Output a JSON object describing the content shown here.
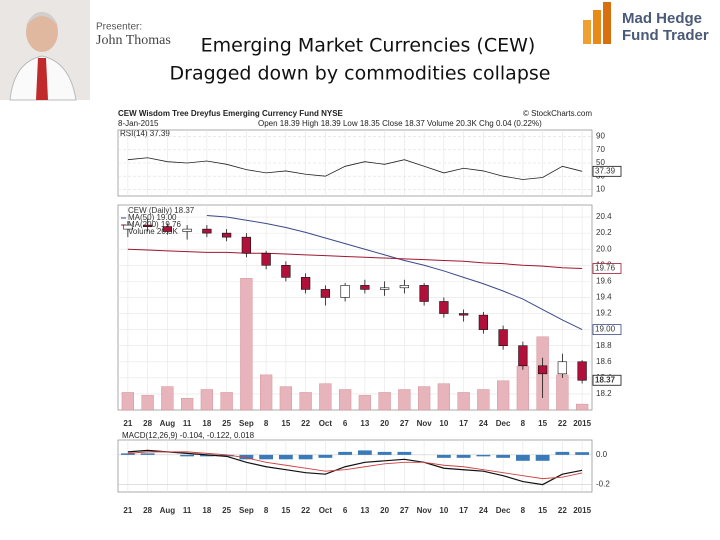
{
  "presenter": {
    "label": "Presenter:",
    "name": "John Thomas"
  },
  "logo": {
    "line1": "Mad Hedge",
    "line2": "Fund Trader"
  },
  "title": {
    "line1": "Emerging Market Currencies (CEW)",
    "line2": "Dragged down by commodities collapse"
  },
  "chart_data": {
    "type": "candlestick",
    "header": "CEW Wisdom Tree Dreyfus Emerging Currency Fund NYSE",
    "source": "© StockCharts.com",
    "date": "8-Jan-2015",
    "quote": "Open 18.39 High 18.39 Low 18.35 Close 18.37 Volume 20.3K Chg 0.04 (0.22%)",
    "rsi_label": "RSI(14) 37.39",
    "macd_label": "MACD(12,26,9) -0.104, -0.122, 0.018",
    "name": "CEW (Daily) 18.37",
    "last_label": "18.37",
    "up_color": "#ffffff",
    "down_color": "#b0103a",
    "categories": [
      "21",
      "28",
      "Aug",
      "11",
      "18",
      "25",
      "Sep",
      "8",
      "15",
      "22",
      "Oct",
      "6",
      "13",
      "20",
      "27",
      "Nov",
      "10",
      "17",
      "24",
      "Dec",
      "8",
      "15",
      "22",
      "2015"
    ],
    "open": [
      20.25,
      20.3,
      20.28,
      20.22,
      20.25,
      20.2,
      20.15,
      19.95,
      19.8,
      19.65,
      19.5,
      19.4,
      19.55,
      19.5,
      19.52,
      19.55,
      19.35,
      19.2,
      19.18,
      19.0,
      18.8,
      18.55,
      18.45,
      18.6
    ],
    "high": [
      20.35,
      20.38,
      20.32,
      20.3,
      20.3,
      20.25,
      20.2,
      19.98,
      19.85,
      19.7,
      19.55,
      19.58,
      19.62,
      19.6,
      19.62,
      19.58,
      19.4,
      19.25,
      19.22,
      19.05,
      18.85,
      18.65,
      18.7,
      18.62
    ],
    "low": [
      20.15,
      20.22,
      20.18,
      20.12,
      20.15,
      20.1,
      19.9,
      19.75,
      19.6,
      19.45,
      19.3,
      19.35,
      19.45,
      19.42,
      19.45,
      19.3,
      19.15,
      19.1,
      18.95,
      18.75,
      18.5,
      18.15,
      18.4,
      18.33
    ],
    "close": [
      20.3,
      20.28,
      20.22,
      20.25,
      20.2,
      20.15,
      19.95,
      19.8,
      19.65,
      19.5,
      19.4,
      19.55,
      19.5,
      19.52,
      19.55,
      19.35,
      19.2,
      19.18,
      19.0,
      18.8,
      18.55,
      18.45,
      18.6,
      18.37
    ],
    "series": [
      {
        "name": "MA(50) 19.00",
        "color": "#3a4a8a",
        "last_label": "19.00",
        "values": [
          null,
          null,
          null,
          null,
          20.42,
          20.4,
          20.36,
          20.32,
          20.27,
          20.21,
          20.14,
          20.07,
          20.0,
          19.93,
          19.86,
          19.8,
          19.73,
          19.65,
          19.57,
          19.48,
          19.38,
          19.25,
          19.12,
          19.0
        ]
      },
      {
        "name": "MA(200) 19.76",
        "color": "#a01830",
        "last_label": "19.76",
        "values": [
          20.0,
          19.99,
          19.98,
          19.97,
          19.96,
          19.96,
          19.95,
          19.95,
          19.94,
          19.93,
          19.92,
          19.91,
          19.9,
          19.89,
          19.88,
          19.87,
          19.86,
          19.85,
          19.83,
          19.82,
          19.8,
          19.79,
          19.77,
          19.76
        ]
      }
    ],
    "ylim": [
      18.0,
      20.55
    ],
    "yticks": [
      18.2,
      18.4,
      18.6,
      18.8,
      {
        "value": 19.0,
        "label": "19.0"
      },
      19.2,
      19.4,
      19.6,
      19.8,
      {
        "value": 20.0,
        "label": "20.0"
      },
      20.2,
      20.4
    ],
    "volume": {
      "name": "Volume 20.3K",
      "color": "#e8b4bc",
      "ylim": [
        0,
        700
      ],
      "values": [
        60,
        50,
        80,
        40,
        70,
        60,
        450,
        120,
        80,
        60,
        90,
        70,
        50,
        60,
        70,
        80,
        90,
        60,
        70,
        100,
        150,
        250,
        120,
        20.3
      ]
    },
    "rsi": {
      "color": "#222222",
      "ylim": [
        0,
        100
      ],
      "yticks": [
        10,
        30,
        50,
        70,
        90
      ],
      "last_label": "37.39",
      "values": [
        55,
        58,
        52,
        50,
        53,
        48,
        40,
        35,
        38,
        33,
        30,
        45,
        52,
        48,
        55,
        45,
        35,
        42,
        38,
        30,
        25,
        28,
        45,
        37.39
      ]
    },
    "macd": {
      "ylim": [
        -0.25,
        0.1
      ],
      "yticks": [
        {
          "value": 0.0,
          "label": "0.0"
        },
        -0.2
      ],
      "line": {
        "color": "#111111",
        "values": [
          0.02,
          0.03,
          0.02,
          0.01,
          0.0,
          -0.01,
          -0.05,
          -0.08,
          -0.1,
          -0.12,
          -0.13,
          -0.08,
          -0.05,
          -0.04,
          -0.03,
          -0.05,
          -0.09,
          -0.1,
          -0.11,
          -0.14,
          -0.18,
          -0.2,
          -0.13,
          -0.104
        ]
      },
      "signal": {
        "color": "#d04040",
        "values": [
          0.01,
          0.02,
          0.02,
          0.02,
          0.01,
          0.0,
          -0.02,
          -0.05,
          -0.07,
          -0.09,
          -0.11,
          -0.1,
          -0.08,
          -0.06,
          -0.05,
          -0.05,
          -0.07,
          -0.08,
          -0.1,
          -0.12,
          -0.14,
          -0.16,
          -0.15,
          -0.122
        ]
      },
      "hist": {
        "color": "#3a7ab8",
        "values": [
          0.01,
          0.01,
          0,
          -0.01,
          -0.01,
          -0.01,
          -0.03,
          -0.03,
          -0.03,
          -0.03,
          -0.02,
          0.02,
          0.03,
          0.02,
          0.02,
          0,
          -0.02,
          -0.02,
          -0.01,
          -0.02,
          -0.04,
          -0.04,
          0.02,
          0.018
        ]
      }
    },
    "grid": true
  }
}
